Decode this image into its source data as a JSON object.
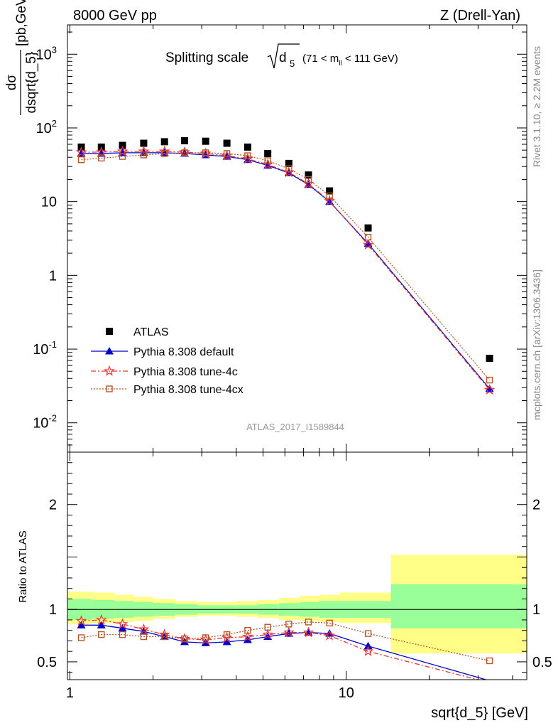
{
  "header": {
    "left": "8000 GeV pp",
    "right": "Z (Drell-Yan)"
  },
  "title": {
    "main": "Splitting scale",
    "symbol": "d",
    "subscript": "5",
    "range": "(71 < m",
    "range_sub": "ll",
    "range_end": " < 111 GeV)"
  },
  "side_labels": {
    "rivet": "Rivet 3.1.10, ≥ 2.2M events",
    "mcplots": "mcplots.cern.ch [arXiv:1306.3436]"
  },
  "watermark": "ATLAS_2017_I1589844",
  "axes": {
    "ylabel_num": "dσ",
    "ylabel_den": "dsqrt{d_5}",
    "ylabel_units": "[pb,GeV",
    "ylabel_units_sup": "-1",
    "ylabel_units_end": "]",
    "ratio_ylabel": "Ratio to ATLAS",
    "xlabel": "sqrt{d_5} [GeV]"
  },
  "legend": [
    {
      "key": "atlas",
      "label": "ATLAS"
    },
    {
      "key": "default",
      "label": "Pythia 8.308 default"
    },
    {
      "key": "tune4c",
      "label": "Pythia 8.308 tune-4c"
    },
    {
      "key": "tune4cx",
      "label": "Pythia 8.308 tune-4cx"
    }
  ],
  "colors": {
    "atlas": "#000000",
    "default": "#0000cc",
    "tune4c": "#ee3333",
    "tune4cx": "#b5562a",
    "band_inner": "#99ff99",
    "band_outer": "#ffff88"
  },
  "chart_data": [
    {
      "type": "scatter",
      "panel": "main",
      "xscale": "log",
      "yscale": "log",
      "xlim": [
        0.98,
        45
      ],
      "ylim": [
        0.004,
        2500
      ],
      "x_ticks": [
        {
          "v": 1,
          "label": "1"
        },
        {
          "v": 10,
          "label": "10"
        }
      ],
      "y_ticks": [
        {
          "v": 0.01,
          "base": "10",
          "exp": "-2"
        },
        {
          "v": 0.1,
          "base": "10",
          "exp": "-1"
        },
        {
          "v": 1,
          "base": "1",
          "exp": ""
        },
        {
          "v": 10,
          "base": "10",
          "exp": ""
        },
        {
          "v": 100,
          "base": "10",
          "exp": "2"
        },
        {
          "v": 1000,
          "base": "10",
          "exp": "3"
        }
      ],
      "x": [
        1.1,
        1.3,
        1.55,
        1.85,
        2.2,
        2.6,
        3.1,
        3.7,
        4.4,
        5.2,
        6.2,
        7.3,
        8.7,
        12,
        33
      ],
      "series": [
        {
          "name": "ATLAS",
          "key": "atlas",
          "values": [
            55,
            55,
            58,
            62,
            65,
            67,
            66,
            62,
            55,
            45,
            33,
            23,
            14,
            4.4,
            0.075
          ]
        },
        {
          "name": "Pythia 8.308 default",
          "key": "default",
          "values": [
            45,
            45,
            46,
            46,
            46,
            45,
            43,
            41,
            37,
            31,
            24.5,
            17,
            10,
            2.7,
            0.029
          ]
        },
        {
          "name": "Pythia 8.308 tune-4c",
          "key": "tune4c",
          "values": [
            47,
            47,
            48,
            48,
            48,
            47,
            45,
            42,
            38,
            32,
            25,
            17.5,
            10.2,
            2.6,
            0.028
          ]
        },
        {
          "name": "Pythia 8.308 tune-4cx",
          "key": "tune4cx",
          "values": [
            37,
            39,
            41,
            43,
            45,
            46,
            46,
            45,
            42,
            36,
            28,
            20,
            12,
            3.3,
            0.038
          ]
        }
      ]
    },
    {
      "type": "line",
      "panel": "ratio",
      "xscale": "log",
      "xlim": [
        0.98,
        45
      ],
      "ylim": [
        0.33,
        2.5
      ],
      "y_ticks": [
        {
          "v": 0.5,
          "label": "0.5"
        },
        {
          "v": 1,
          "label": "1"
        },
        {
          "v": 2,
          "label": "2"
        }
      ],
      "bands": {
        "edges": [
          0.98,
          1.2,
          1.45,
          1.7,
          2.0,
          2.4,
          2.9,
          3.4,
          4.0,
          4.8,
          5.7,
          6.8,
          8.0,
          9.5,
          14.5,
          45
        ],
        "inner_lo": [
          0.9,
          0.91,
          0.92,
          0.93,
          0.94,
          0.95,
          0.96,
          0.96,
          0.96,
          0.95,
          0.94,
          0.93,
          0.92,
          0.92,
          0.82
        ],
        "inner_hi": [
          1.1,
          1.09,
          1.08,
          1.07,
          1.06,
          1.05,
          1.04,
          1.04,
          1.04,
          1.05,
          1.06,
          1.07,
          1.08,
          1.08,
          1.24
        ],
        "outer_lo": [
          0.86,
          0.87,
          0.88,
          0.89,
          0.91,
          0.93,
          0.94,
          0.94,
          0.93,
          0.92,
          0.9,
          0.89,
          0.88,
          0.87,
          0.58
        ],
        "outer_hi": [
          1.17,
          1.16,
          1.14,
          1.12,
          1.1,
          1.08,
          1.07,
          1.07,
          1.08,
          1.09,
          1.11,
          1.13,
          1.14,
          1.16,
          1.52
        ]
      },
      "x": [
        1.1,
        1.3,
        1.55,
        1.85,
        2.2,
        2.6,
        3.1,
        3.7,
        4.4,
        5.2,
        6.2,
        7.3,
        8.7,
        12,
        33
      ],
      "series": [
        {
          "name": "Pythia 8.308 default",
          "key": "default",
          "values": [
            0.85,
            0.85,
            0.82,
            0.79,
            0.74,
            0.69,
            0.68,
            0.69,
            0.71,
            0.74,
            0.77,
            0.78,
            0.77,
            0.65,
            0.32
          ]
        },
        {
          "name": "Pythia 8.308 tune-4c",
          "key": "tune4c",
          "values": [
            0.89,
            0.9,
            0.86,
            0.81,
            0.76,
            0.72,
            0.71,
            0.73,
            0.74,
            0.76,
            0.78,
            0.78,
            0.75,
            0.6,
            0.3
          ]
        },
        {
          "name": "Pythia 8.308 tune-4cx",
          "key": "tune4cx",
          "values": [
            0.73,
            0.76,
            0.76,
            0.74,
            0.74,
            0.72,
            0.73,
            0.76,
            0.8,
            0.83,
            0.86,
            0.88,
            0.87,
            0.77,
            0.51
          ]
        }
      ]
    }
  ]
}
